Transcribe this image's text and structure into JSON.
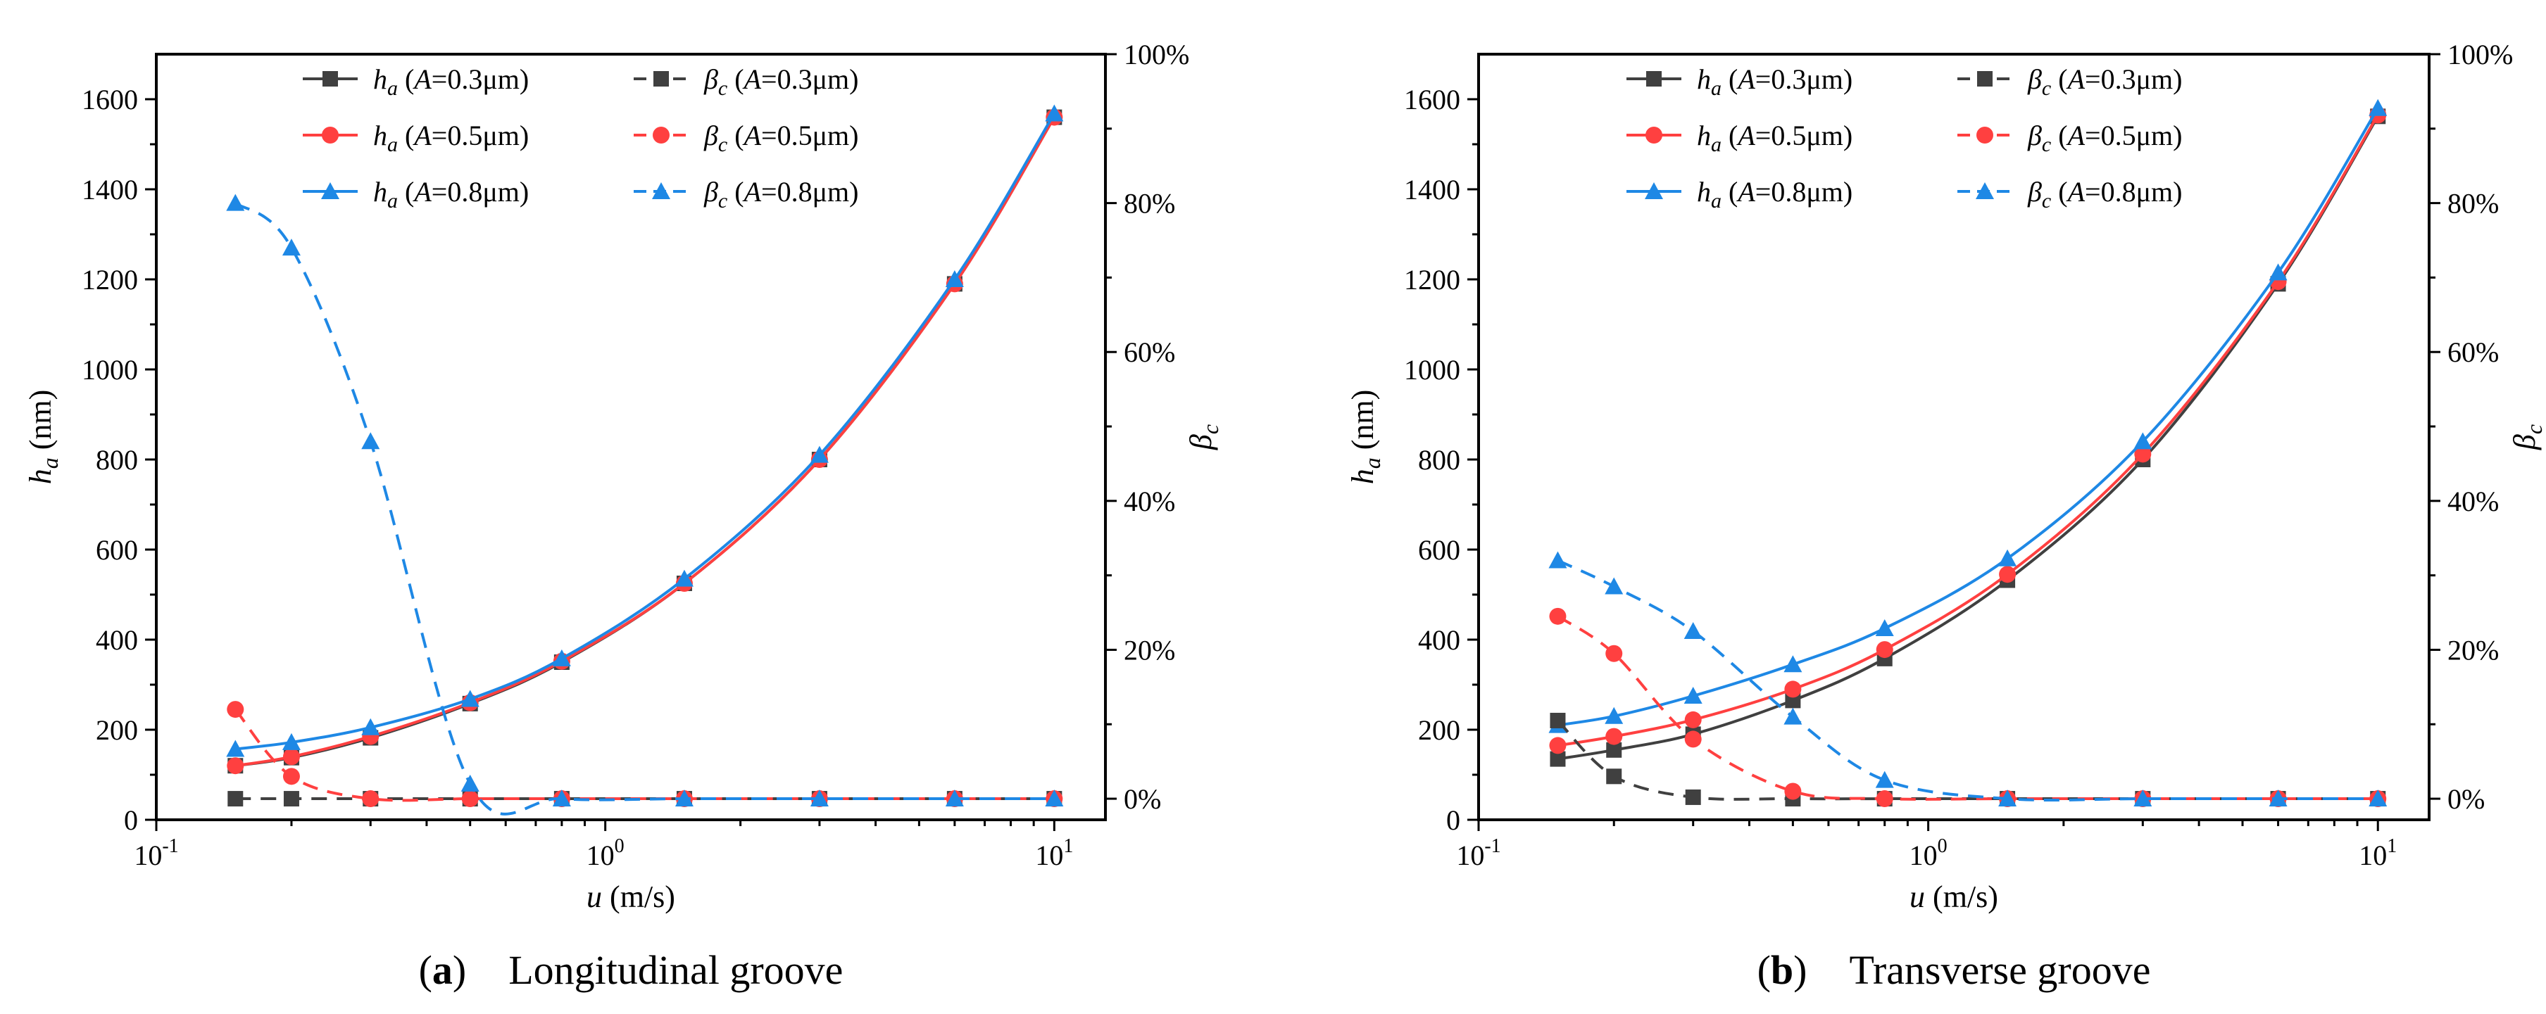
{
  "colors": {
    "black": "#404040",
    "red": "#ff4040",
    "blue": "#1e88e5"
  },
  "chart_data": [
    {
      "type": "line",
      "panel_label": "a",
      "caption": "Longitudinal groove",
      "x": [
        0.15,
        0.2,
        0.3,
        0.5,
        0.8,
        1.5,
        3,
        6,
        10
      ],
      "x_scale": "log",
      "xlim": [
        0.1,
        13
      ],
      "x_ticks": [
        {
          "value": 0.1,
          "base": "10",
          "exp": "-1"
        },
        {
          "value": 1,
          "base": "10",
          "exp": "0"
        },
        {
          "value": 10,
          "base": "10",
          "exp": "1"
        }
      ],
      "xlabel": {
        "var": "u",
        "unit": " (m/s)"
      },
      "ylim": [
        0,
        1700
      ],
      "y_ticks": [
        0,
        200,
        400,
        600,
        800,
        1000,
        1200,
        1400,
        1600
      ],
      "ylabel": {
        "var": "h",
        "sub": "a",
        "unit": " (nm)"
      },
      "y2lim": [
        -0.0283,
        1.0
      ],
      "y2_ticks": [
        {
          "value": 0,
          "label": "0%"
        },
        {
          "value": 0.2,
          "label": "20%"
        },
        {
          "value": 0.4,
          "label": "40%"
        },
        {
          "value": 0.6,
          "label": "60%"
        },
        {
          "value": 0.8,
          "label": "80%"
        },
        {
          "value": 1.0,
          "label": "100%"
        }
      ],
      "y2label": {
        "var": "β",
        "sub": "c"
      },
      "series": [
        {
          "name": "h_a (A=0.3μm)",
          "axis": "left",
          "color": "black",
          "marker": "square",
          "dash": false,
          "values": [
            120,
            138,
            182,
            258,
            350,
            525,
            800,
            1190,
            1560
          ]
        },
        {
          "name": "h_a (A=0.5μm)",
          "axis": "left",
          "color": "red",
          "marker": "circle",
          "dash": false,
          "values": [
            120,
            140,
            185,
            260,
            352,
            525,
            800,
            1190,
            1560
          ]
        },
        {
          "name": "h_a (A=0.8μm)",
          "axis": "left",
          "color": "blue",
          "marker": "triangle",
          "dash": false,
          "values": [
            157,
            172,
            205,
            268,
            358,
            535,
            810,
            1200,
            1568
          ]
        },
        {
          "name": "β_c (A=0.3μm)",
          "axis": "right",
          "color": "black",
          "marker": "square",
          "dash": true,
          "values": [
            0,
            0,
            0,
            0,
            0,
            0,
            0,
            0,
            0
          ]
        },
        {
          "name": "β_c (A=0.5μm)",
          "axis": "right",
          "color": "red",
          "marker": "circle",
          "dash": true,
          "values": [
            0.12,
            0.03,
            0,
            0,
            0,
            0,
            0,
            0,
            0
          ]
        },
        {
          "name": "β_c (A=0.8μm)",
          "axis": "right",
          "color": "blue",
          "marker": "triangle",
          "dash": true,
          "values": [
            0.8,
            0.74,
            0.48,
            0.02,
            0,
            0,
            0,
            0,
            0
          ]
        }
      ],
      "legend": {
        "placement": "top-center",
        "rows": [
          {
            "solid": {
              "var": "h",
              "sub": "a",
              "rest": " (",
              "A": "A",
              "val": "=0.3μm)"
            },
            "dashed": {
              "var": "β",
              "sub": "c",
              "rest": " (",
              "A": "A",
              "val": "=0.3μm)"
            }
          },
          {
            "solid": {
              "var": "h",
              "sub": "a",
              "rest": " (",
              "A": "A",
              "val": "=0.5μm)"
            },
            "dashed": {
              "var": "β",
              "sub": "c",
              "rest": " (",
              "A": "A",
              "val": "=0.5μm)"
            }
          },
          {
            "solid": {
              "var": "h",
              "sub": "a",
              "rest": " (",
              "A": "A",
              "val": "=0.8μm)"
            },
            "dashed": {
              "var": "β",
              "sub": "c",
              "rest": " (",
              "A": "A",
              "val": "=0.8μm)"
            }
          }
        ]
      }
    },
    {
      "type": "line",
      "panel_label": "b",
      "caption": "Transverse groove",
      "x": [
        0.15,
        0.2,
        0.3,
        0.5,
        0.8,
        1.5,
        3,
        6,
        10
      ],
      "x_scale": "log",
      "xlim": [
        0.1,
        13
      ],
      "x_ticks": [
        {
          "value": 0.1,
          "base": "10",
          "exp": "-1"
        },
        {
          "value": 1,
          "base": "10",
          "exp": "0"
        },
        {
          "value": 10,
          "base": "10",
          "exp": "1"
        }
      ],
      "xlabel": {
        "var": "u",
        "unit": " (m/s)"
      },
      "ylim": [
        0,
        1700
      ],
      "y_ticks": [
        0,
        200,
        400,
        600,
        800,
        1000,
        1200,
        1400,
        1600
      ],
      "ylabel": {
        "var": "h",
        "sub": "a",
        "unit": " (nm)"
      },
      "y2lim": [
        -0.0283,
        1.0
      ],
      "y2_ticks": [
        {
          "value": 0,
          "label": "0%"
        },
        {
          "value": 0.2,
          "label": "20%"
        },
        {
          "value": 0.4,
          "label": "40%"
        },
        {
          "value": 0.6,
          "label": "60%"
        },
        {
          "value": 0.8,
          "label": "80%"
        },
        {
          "value": 1.0,
          "label": "100%"
        }
      ],
      "y2label": {
        "var": "β",
        "sub": "c"
      },
      "series": [
        {
          "name": "h_a (A=0.3μm)",
          "axis": "left",
          "color": "black",
          "marker": "square",
          "dash": false,
          "values": [
            135,
            155,
            190,
            265,
            358,
            532,
            800,
            1190,
            1562
          ]
        },
        {
          "name": "h_a (A=0.5μm)",
          "axis": "left",
          "color": "red",
          "marker": "circle",
          "dash": false,
          "values": [
            165,
            185,
            222,
            290,
            378,
            545,
            812,
            1195,
            1565
          ]
        },
        {
          "name": "h_a (A=0.8μm)",
          "axis": "left",
          "color": "blue",
          "marker": "triangle",
          "dash": false,
          "values": [
            210,
            230,
            275,
            345,
            425,
            580,
            840,
            1215,
            1580
          ]
        },
        {
          "name": "β_c (A=0.3μm)",
          "axis": "right",
          "color": "black",
          "marker": "square",
          "dash": true,
          "values": [
            0.105,
            0.03,
            0.002,
            0,
            0,
            0,
            0,
            0,
            0
          ]
        },
        {
          "name": "β_c (A=0.5μm)",
          "axis": "right",
          "color": "red",
          "marker": "circle",
          "dash": true,
          "values": [
            0.245,
            0.195,
            0.08,
            0.01,
            0,
            0,
            0,
            0,
            0
          ]
        },
        {
          "name": "β_c (A=0.8μm)",
          "axis": "right",
          "color": "blue",
          "marker": "triangle",
          "dash": true,
          "values": [
            0.32,
            0.285,
            0.225,
            0.11,
            0.025,
            0,
            0,
            0,
            0
          ]
        }
      ],
      "legend": {
        "placement": "top-center",
        "rows": [
          {
            "solid": {
              "var": "h",
              "sub": "a",
              "rest": " (",
              "A": "A",
              "val": "=0.3μm)"
            },
            "dashed": {
              "var": "β",
              "sub": "c",
              "rest": " (",
              "A": "A",
              "val": "=0.3μm)"
            }
          },
          {
            "solid": {
              "var": "h",
              "sub": "a",
              "rest": " (",
              "A": "A",
              "val": "=0.5μm)"
            },
            "dashed": {
              "var": "β",
              "sub": "c",
              "rest": " (",
              "A": "A",
              "val": "=0.5μm)"
            }
          },
          {
            "solid": {
              "var": "h",
              "sub": "a",
              "rest": " (",
              "A": "A",
              "val": "=0.8μm)"
            },
            "dashed": {
              "var": "β",
              "sub": "c",
              "rest": " (",
              "A": "A",
              "val": "=0.8μm)"
            }
          }
        ]
      }
    }
  ]
}
